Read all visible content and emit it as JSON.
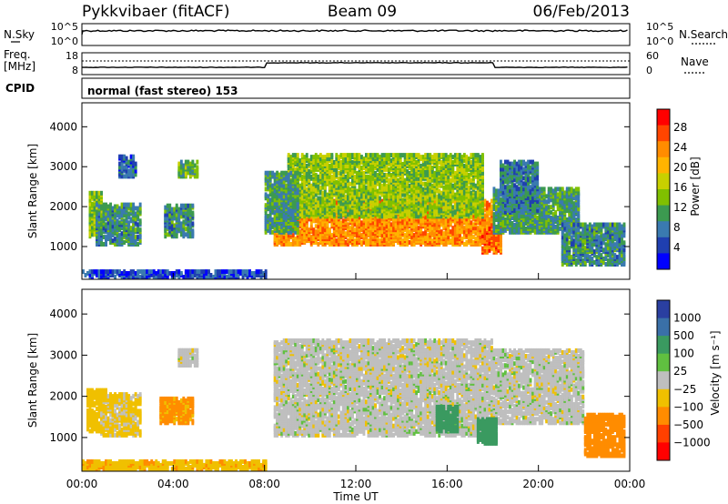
{
  "header": {
    "station": "Pykkvibaer (fitACF)",
    "beam": "Beam 09",
    "date": "06/Feb/2013"
  },
  "noise_panel": {
    "left_label": "N.Sky",
    "left_ticks": [
      "10^5",
      "10^0"
    ],
    "right_label": "N.Search",
    "right_ticks": [
      "10^5",
      "10^0"
    ]
  },
  "freq_panel": {
    "left_label_1": "Freq.",
    "left_label_2": "[MHz]",
    "left_ticks": [
      "18",
      "8"
    ],
    "right_label": "Nave",
    "right_ticks": [
      "60",
      "0"
    ]
  },
  "cpid_panel": {
    "label": "CPID",
    "text": "normal (fast stereo) 153"
  },
  "power_colorbar": {
    "title": "Power [dB]",
    "ticks": [
      "28",
      "24",
      "20",
      "16",
      "12",
      "8",
      "4"
    ],
    "colors": [
      "#ff0000",
      "#ff4500",
      "#ff8c00",
      "#ffb400",
      "#c8d000",
      "#80c000",
      "#3c9a50",
      "#3a7ab0",
      "#1f3fb0",
      "#0000ff"
    ]
  },
  "velocity_colorbar": {
    "title": "Velocity [m s⁻¹]",
    "ticks": [
      "1000",
      "500",
      "100",
      "25",
      "−25",
      "−100",
      "−500",
      "−1000"
    ],
    "colors": [
      "#2a3fa0",
      "#3a70a8",
      "#3a9a60",
      "#60c040",
      "#bfbfbf",
      "#f0c000",
      "#ff8c00",
      "#ff4000",
      "#ff0000"
    ]
  },
  "x_axis": {
    "label": "Time UT",
    "ticks": [
      "00:00",
      "04:00",
      "08:00",
      "12:00",
      "16:00",
      "20:00",
      "00:00"
    ]
  },
  "chart_data": [
    {
      "type": "heatmap",
      "title": "",
      "xlabel": "",
      "ylabel": "Slant Range [km]",
      "yticks": [
        1000,
        2000,
        3000,
        4000
      ],
      "ylim": [
        180,
        4600
      ],
      "xlim_hours": [
        0,
        24
      ],
      "colorbar": "Power [dB]",
      "colorbar_range": [
        0,
        30
      ],
      "blobs": [
        {
          "t0": 8.4,
          "t1": 18.0,
          "r0": 1000,
          "r1": 2100,
          "v": 22
        },
        {
          "t0": 9.0,
          "t1": 17.5,
          "r0": 1700,
          "r1": 3250,
          "v": 14
        },
        {
          "t0": 8.0,
          "t1": 9.4,
          "r0": 1300,
          "r1": 2800,
          "v": 10
        },
        {
          "t0": 17.5,
          "t1": 18.4,
          "r0": 800,
          "r1": 1400,
          "v": 24
        },
        {
          "t0": 18.0,
          "t1": 21.8,
          "r0": 1300,
          "r1": 2400,
          "v": 10
        },
        {
          "t0": 18.3,
          "t1": 20.0,
          "r0": 1800,
          "r1": 3100,
          "v": 8
        },
        {
          "t0": 21.0,
          "t1": 23.8,
          "r0": 500,
          "r1": 1500,
          "v": 9
        },
        {
          "t0": 0.3,
          "t1": 0.8,
          "r0": 1200,
          "r1": 2300,
          "v": 14
        },
        {
          "t0": 0.6,
          "t1": 2.6,
          "r0": 1000,
          "r1": 2000,
          "v": 9
        },
        {
          "t0": 4.2,
          "t1": 5.0,
          "r0": 2700,
          "r1": 3100,
          "v": 12
        },
        {
          "t0": 3.6,
          "t1": 4.8,
          "r0": 1200,
          "r1": 2000,
          "v": 9
        },
        {
          "t0": 1.6,
          "t1": 2.4,
          "r0": 2700,
          "r1": 3200,
          "v": 6
        },
        {
          "t0": 0.0,
          "t1": 8.0,
          "r0": 180,
          "r1": 350,
          "v": 5
        }
      ]
    },
    {
      "type": "heatmap",
      "title": "",
      "xlabel": "Time UT",
      "ylabel": "Slant Range [km]",
      "yticks": [
        1000,
        2000,
        3000,
        4000
      ],
      "ylim": [
        180,
        4600
      ],
      "xlim_hours": [
        0,
        24
      ],
      "colorbar": "Velocity [m s⁻¹]",
      "colorbar_range": [
        -1000,
        1000
      ],
      "blobs": [
        {
          "t0": 8.4,
          "t1": 18.0,
          "r0": 1000,
          "r1": 3300,
          "v": 0
        },
        {
          "t0": 18.0,
          "t1": 22.0,
          "r0": 1300,
          "r1": 3100,
          "v": 0
        },
        {
          "t0": 4.2,
          "t1": 5.0,
          "r0": 2700,
          "r1": 3100,
          "v": 0
        },
        {
          "t0": 15.5,
          "t1": 16.5,
          "r0": 1100,
          "r1": 1700,
          "v": 200
        },
        {
          "t0": 17.3,
          "t1": 18.2,
          "r0": 800,
          "r1": 1400,
          "v": 150
        },
        {
          "t0": 0.2,
          "t1": 1.0,
          "r0": 1100,
          "r1": 2100,
          "v": -60
        },
        {
          "t0": 0.8,
          "t1": 2.6,
          "r0": 1000,
          "r1": 2000,
          "v": -40
        },
        {
          "t0": 3.4,
          "t1": 4.8,
          "r0": 1300,
          "r1": 1900,
          "v": -120
        },
        {
          "t0": 22.0,
          "t1": 23.8,
          "r0": 500,
          "r1": 1500,
          "v": -150
        },
        {
          "t0": 0.0,
          "t1": 8.0,
          "r0": 180,
          "r1": 380,
          "v": -80
        }
      ]
    }
  ]
}
